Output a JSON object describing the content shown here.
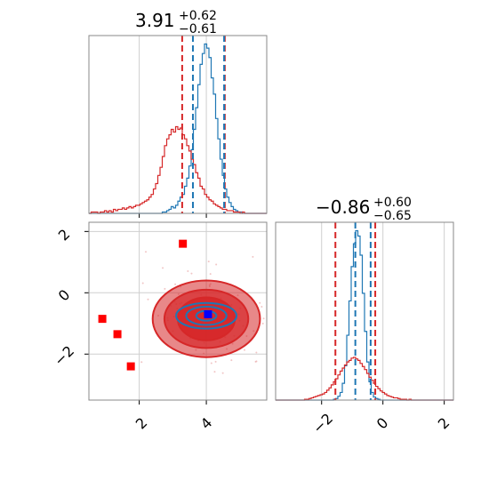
{
  "chart_data": {
    "type": "corner",
    "parameters": [
      {
        "median_text": "3.91",
        "plus_text": "+0.62",
        "minus_text": "−0.61",
        "xlim": [
          0.5,
          5.8
        ],
        "ticks": [
          2,
          4
        ],
        "tick_labels": [
          "2",
          "4"
        ],
        "quantile_lines": {
          "blue_dashed": [
            3.6,
            4.53
          ],
          "red_dashed": [
            3.28,
            4.55
          ]
        }
      },
      {
        "median_text": "−0.86",
        "plus_text": "+0.60",
        "minus_text": "−0.65",
        "xlim": [
          -3.5,
          2.3
        ],
        "ticks": [
          -2,
          0,
          2
        ],
        "tick_labels": [
          "−2",
          "0",
          "2"
        ],
        "quantile_lines": {
          "blue_dashed": [
            -0.9,
            -0.4
          ],
          "red_dashed": [
            -1.55,
            -0.25
          ]
        }
      }
    ],
    "scatter_panel": {
      "xlim": [
        0.5,
        5.8
      ],
      "ylim": [
        -3.5,
        2.3
      ],
      "y_ticks": [
        -2,
        0,
        2
      ],
      "y_tick_labels": [
        "−2",
        "0",
        "2"
      ],
      "red_square_markers": [
        [
          3.3,
          1.6
        ],
        [
          0.9,
          -0.85
        ],
        [
          1.35,
          -1.35
        ],
        [
          1.75,
          -2.4
        ]
      ],
      "blue_square_marker": [
        4.05,
        -0.7
      ]
    },
    "series": [
      {
        "color": "#1f77b4",
        "hist_param0": {
          "edges": [
            0.5,
            5.8
          ],
          "counts": [
            0,
            0,
            0,
            0,
            0,
            0,
            0,
            0,
            0,
            0,
            0,
            0,
            0,
            0,
            0,
            0,
            0,
            0,
            0,
            0,
            0,
            0,
            0,
            0,
            0,
            0,
            0,
            0,
            0,
            0,
            0,
            0,
            0,
            1,
            1,
            2,
            3,
            5,
            4,
            6,
            9,
            12,
            14,
            20,
            26,
            35,
            47,
            62,
            78,
            95,
            110,
            118,
            125,
            122,
            115,
            100,
            88,
            70,
            55,
            40,
            28,
            18,
            12,
            8,
            5,
            3,
            2,
            1,
            1,
            0,
            0,
            0,
            0,
            0,
            0,
            0,
            0,
            0,
            0,
            0
          ]
        },
        "hist_param1": {
          "edges": [
            -3.5,
            2.3
          ],
          "counts": [
            0,
            0,
            0,
            0,
            0,
            0,
            0,
            0,
            0,
            0,
            0,
            0,
            0,
            0,
            0,
            0,
            0,
            0,
            0,
            0,
            0,
            0,
            0,
            0,
            0,
            0,
            1,
            2,
            5,
            10,
            22,
            45,
            85,
            130,
            175,
            205,
            222,
            215,
            190,
            140,
            90,
            50,
            24,
            10,
            4,
            2,
            1,
            0,
            0,
            0,
            0,
            0,
            0,
            0,
            0,
            0,
            0,
            0,
            0,
            0,
            0,
            0,
            0,
            0,
            0,
            0,
            0,
            0,
            0,
            0,
            0,
            0,
            0,
            0,
            0,
            0,
            0,
            0,
            0,
            0
          ]
        }
      },
      {
        "color": "#d62728",
        "hist_param0": {
          "edges": [
            0.5,
            5.8
          ],
          "counts": [
            0,
            1,
            1,
            1,
            0,
            1,
            1,
            2,
            1,
            2,
            1,
            3,
            2,
            3,
            3,
            4,
            3,
            4,
            5,
            4,
            5,
            6,
            6,
            7,
            8,
            9,
            10,
            12,
            14,
            18,
            22,
            28,
            34,
            42,
            50,
            55,
            58,
            62,
            60,
            64,
            62,
            63,
            58,
            55,
            50,
            46,
            40,
            36,
            30,
            26,
            20,
            18,
            14,
            12,
            10,
            9,
            7,
            6,
            5,
            4,
            3,
            3,
            2,
            2,
            2,
            1,
            1,
            1,
            0,
            1,
            0,
            0,
            0,
            0,
            0,
            0,
            0,
            0,
            0,
            0
          ]
        },
        "hist_param1": {
          "edges": [
            -3.5,
            2.3
          ],
          "counts": [
            0,
            0,
            0,
            0,
            0,
            0,
            0,
            0,
            0,
            0,
            0,
            0,
            0,
            1,
            1,
            2,
            3,
            4,
            5,
            6,
            7,
            8,
            10,
            13,
            16,
            20,
            24,
            28,
            33,
            38,
            42,
            46,
            50,
            52,
            55,
            56,
            54,
            52,
            48,
            44,
            40,
            35,
            30,
            26,
            22,
            18,
            15,
            12,
            10,
            8,
            6,
            5,
            4,
            3,
            3,
            2,
            1,
            1,
            1,
            0,
            1,
            0,
            0,
            0,
            0,
            0,
            0,
            0,
            0,
            0,
            0,
            0,
            0,
            0,
            0,
            0,
            0,
            0,
            0,
            0
          ]
        }
      }
    ],
    "contours": [
      {
        "color": "#d62728",
        "levels": [
          {
            "cx": 4.0,
            "cy": -0.85,
            "rx": 1.6,
            "ry": 1.25,
            "fill_opacity": 0.55
          },
          {
            "cx": 4.0,
            "cy": -0.85,
            "rx": 1.25,
            "ry": 0.95,
            "fill_opacity": 0.7
          },
          {
            "cx": 4.0,
            "cy": -0.85,
            "rx": 0.85,
            "ry": 0.7,
            "fill_opacity": 0.9
          }
        ]
      },
      {
        "color": "#1f77b4",
        "levels": [
          {
            "cx": 4.0,
            "cy": -0.75,
            "rx": 0.9,
            "ry": 0.42,
            "fill_opacity": 0
          },
          {
            "cx": 4.0,
            "cy": -0.75,
            "rx": 0.6,
            "ry": 0.3,
            "fill_opacity": 0
          },
          {
            "cx": 4.0,
            "cy": -0.75,
            "rx": 0.3,
            "ry": 0.16,
            "fill_opacity": 0
          }
        ]
      }
    ]
  }
}
